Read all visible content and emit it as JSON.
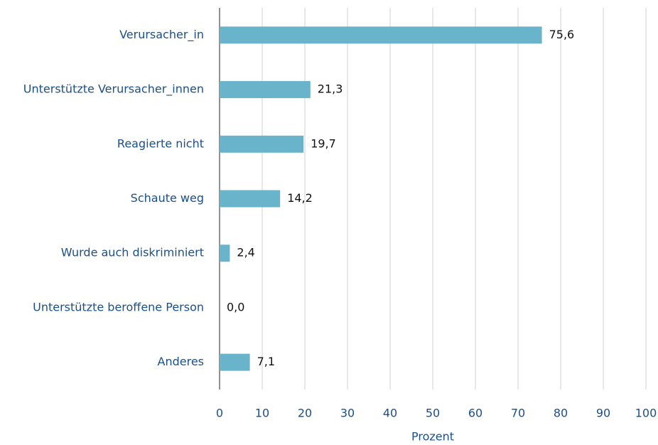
{
  "chart_data": {
    "type": "bar",
    "orientation": "horizontal",
    "categories": [
      "Verursacher_in",
      "Unterstützte Verursacher_innen",
      "Reagierte nicht",
      "Schaute weg",
      "Wurde auch diskriminiert",
      "Unterstützte beroffene Person",
      "Anderes"
    ],
    "values": [
      75.6,
      21.3,
      19.7,
      14.2,
      2.4,
      0.0,
      7.1
    ],
    "value_labels": [
      "75,6",
      "21,3",
      "19,7",
      "14,2",
      "2,4",
      "0,0",
      "7,1"
    ],
    "color": "#69b3cb",
    "xlabel": "Prozent",
    "xlim": [
      0,
      100
    ],
    "xticks": [
      0,
      10,
      20,
      30,
      40,
      50,
      60,
      70,
      80,
      90,
      100
    ],
    "grid": true
  }
}
